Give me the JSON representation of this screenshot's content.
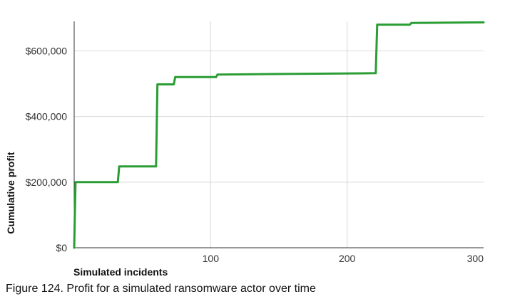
{
  "chart_data": {
    "type": "line",
    "xlabel": "Simulated incidents",
    "ylabel": "Cumulative profit",
    "xlim": [
      0,
      300
    ],
    "ylim": [
      0,
      690000
    ],
    "x_ticks": [
      100,
      200,
      300
    ],
    "x_tick_labels": [
      "100",
      "200",
      "300"
    ],
    "y_ticks": [
      0,
      200000,
      400000,
      600000
    ],
    "y_tick_labels": [
      "$0",
      "$200,000",
      "$400,000",
      "$600,000"
    ],
    "grid": true,
    "line_color": "#2a9d34",
    "series": [
      {
        "x": [
          0,
          1,
          32,
          33,
          60,
          61,
          73,
          74,
          104,
          105,
          221,
          222,
          246,
          247,
          300
        ],
        "values": [
          0,
          200000,
          200000,
          248000,
          248000,
          498000,
          498000,
          520000,
          520000,
          528000,
          532000,
          680000,
          680000,
          685000,
          687000
        ]
      }
    ]
  },
  "caption": "Figure 124. Profit for a simulated ransomware actor over time"
}
